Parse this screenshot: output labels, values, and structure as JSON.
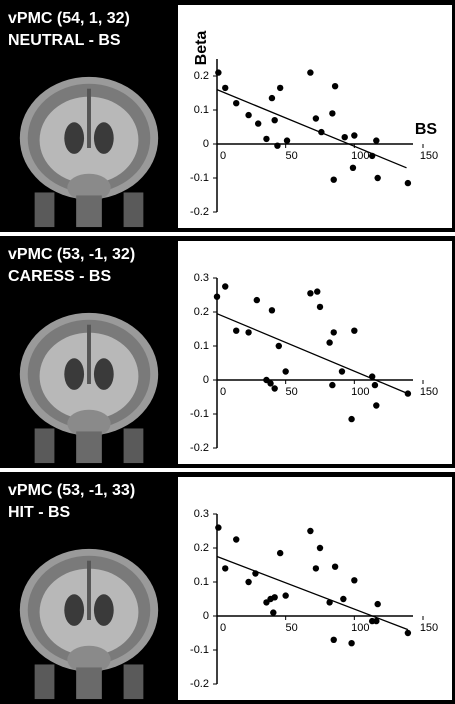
{
  "chart_data": [
    {
      "type": "scatter",
      "title": "vPMC (54, 1, 32)",
      "subtitle": "NEUTRAL - BS",
      "ylabel": "Beta",
      "xlabel": "BS",
      "xlim": [
        0,
        150
      ],
      "ylim": [
        -0.2,
        0.25
      ],
      "xticks": [
        0,
        50,
        100,
        150
      ],
      "yticks": [
        -0.2,
        -0.1,
        0,
        0.1,
        0.2
      ],
      "color": "#000000",
      "x": [
        1,
        6,
        14,
        23,
        30,
        36,
        40,
        42,
        46,
        44,
        51,
        68,
        72,
        76,
        84,
        86,
        85,
        93,
        100,
        99,
        113,
        116,
        117,
        139
      ],
      "y": [
        0.21,
        0.165,
        0.12,
        0.085,
        0.06,
        0.015,
        0.135,
        0.07,
        0.165,
        -0.005,
        0.01,
        0.21,
        0.075,
        0.035,
        0.09,
        0.17,
        -0.105,
        0.02,
        0.025,
        -0.07,
        -0.035,
        0.01,
        -0.1,
        -0.115
      ],
      "fit": {
        "x": [
          0,
          138
        ],
        "y": [
          0.16,
          -0.07
        ]
      }
    },
    {
      "type": "scatter",
      "title": "vPMC (53, -1, 32)",
      "subtitle": "CARESS - BS",
      "xlim": [
        0,
        150
      ],
      "ylim": [
        -0.2,
        0.3
      ],
      "xticks": [
        0,
        50,
        100,
        150
      ],
      "yticks": [
        -0.2,
        -0.1,
        0,
        0.1,
        0.2,
        0.3
      ],
      "color": "#000000",
      "x": [
        0,
        6,
        14,
        23,
        29,
        36,
        40,
        39,
        42,
        45,
        50,
        68,
        73,
        75,
        82,
        85,
        84,
        91,
        100,
        98,
        113,
        115,
        116,
        139
      ],
      "y": [
        0.245,
        0.275,
        0.145,
        0.14,
        0.235,
        0,
        0.205,
        -0.01,
        -0.025,
        0.1,
        0.025,
        0.255,
        0.26,
        0.215,
        0.11,
        0.14,
        -0.015,
        0.025,
        0.145,
        -0.115,
        0.01,
        -0.015,
        -0.075,
        -0.04
      ],
      "fit": {
        "x": [
          0,
          139
        ],
        "y": [
          0.195,
          -0.04
        ]
      }
    },
    {
      "type": "scatter",
      "title": "vPMC (53, -1, 33)",
      "subtitle": "HIT - BS",
      "xlim": [
        0,
        150
      ],
      "ylim": [
        -0.2,
        0.3
      ],
      "xticks": [
        0,
        50,
        100,
        150
      ],
      "yticks": [
        -0.2,
        -0.1,
        0,
        0.1,
        0.2,
        0.3
      ],
      "color": "#000000",
      "x": [
        1,
        6,
        14,
        23,
        28,
        36,
        39,
        41,
        42,
        46,
        50,
        68,
        72,
        75,
        82,
        86,
        85,
        92,
        100,
        98,
        113,
        116,
        117,
        139
      ],
      "y": [
        0.26,
        0.14,
        0.225,
        0.1,
        0.125,
        0.04,
        0.05,
        0.01,
        0.055,
        0.185,
        0.06,
        0.25,
        0.14,
        0.2,
        0.04,
        0.145,
        -0.07,
        0.05,
        0.105,
        -0.08,
        -0.015,
        -0.015,
        0.035,
        -0.05
      ],
      "fit": {
        "x": [
          0,
          139
        ],
        "y": [
          0.175,
          -0.04
        ]
      }
    }
  ]
}
